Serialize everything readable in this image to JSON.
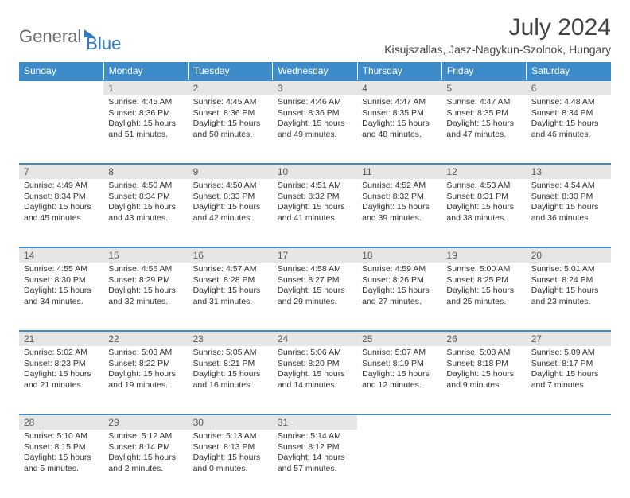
{
  "header": {
    "logo_general": "General",
    "logo_blue": "Blue",
    "title": "July 2024",
    "subtitle": "Kisujszallas, Jasz-Nagykun-Szolnok, Hungary"
  },
  "colors": {
    "header_bg": "#3d8bc9",
    "header_text": "#ffffff",
    "daynum_bg": "#e6e6e6",
    "daynum_text": "#5a5a5a",
    "body_text": "#333333",
    "border": "#3d8bc9",
    "logo_gray": "#6a6a6a",
    "logo_blue": "#2f7bbf"
  },
  "day_headers": [
    "Sunday",
    "Monday",
    "Tuesday",
    "Wednesday",
    "Thursday",
    "Friday",
    "Saturday"
  ],
  "weeks": [
    [
      {
        "n": "",
        "sr": "",
        "ss": "",
        "dl": ""
      },
      {
        "n": "1",
        "sr": "4:45 AM",
        "ss": "8:36 PM",
        "dl": "15 hours and 51 minutes."
      },
      {
        "n": "2",
        "sr": "4:45 AM",
        "ss": "8:36 PM",
        "dl": "15 hours and 50 minutes."
      },
      {
        "n": "3",
        "sr": "4:46 AM",
        "ss": "8:36 PM",
        "dl": "15 hours and 49 minutes."
      },
      {
        "n": "4",
        "sr": "4:47 AM",
        "ss": "8:35 PM",
        "dl": "15 hours and 48 minutes."
      },
      {
        "n": "5",
        "sr": "4:47 AM",
        "ss": "8:35 PM",
        "dl": "15 hours and 47 minutes."
      },
      {
        "n": "6",
        "sr": "4:48 AM",
        "ss": "8:34 PM",
        "dl": "15 hours and 46 minutes."
      }
    ],
    [
      {
        "n": "7",
        "sr": "4:49 AM",
        "ss": "8:34 PM",
        "dl": "15 hours and 45 minutes."
      },
      {
        "n": "8",
        "sr": "4:50 AM",
        "ss": "8:34 PM",
        "dl": "15 hours and 43 minutes."
      },
      {
        "n": "9",
        "sr": "4:50 AM",
        "ss": "8:33 PM",
        "dl": "15 hours and 42 minutes."
      },
      {
        "n": "10",
        "sr": "4:51 AM",
        "ss": "8:32 PM",
        "dl": "15 hours and 41 minutes."
      },
      {
        "n": "11",
        "sr": "4:52 AM",
        "ss": "8:32 PM",
        "dl": "15 hours and 39 minutes."
      },
      {
        "n": "12",
        "sr": "4:53 AM",
        "ss": "8:31 PM",
        "dl": "15 hours and 38 minutes."
      },
      {
        "n": "13",
        "sr": "4:54 AM",
        "ss": "8:30 PM",
        "dl": "15 hours and 36 minutes."
      }
    ],
    [
      {
        "n": "14",
        "sr": "4:55 AM",
        "ss": "8:30 PM",
        "dl": "15 hours and 34 minutes."
      },
      {
        "n": "15",
        "sr": "4:56 AM",
        "ss": "8:29 PM",
        "dl": "15 hours and 32 minutes."
      },
      {
        "n": "16",
        "sr": "4:57 AM",
        "ss": "8:28 PM",
        "dl": "15 hours and 31 minutes."
      },
      {
        "n": "17",
        "sr": "4:58 AM",
        "ss": "8:27 PM",
        "dl": "15 hours and 29 minutes."
      },
      {
        "n": "18",
        "sr": "4:59 AM",
        "ss": "8:26 PM",
        "dl": "15 hours and 27 minutes."
      },
      {
        "n": "19",
        "sr": "5:00 AM",
        "ss": "8:25 PM",
        "dl": "15 hours and 25 minutes."
      },
      {
        "n": "20",
        "sr": "5:01 AM",
        "ss": "8:24 PM",
        "dl": "15 hours and 23 minutes."
      }
    ],
    [
      {
        "n": "21",
        "sr": "5:02 AM",
        "ss": "8:23 PM",
        "dl": "15 hours and 21 minutes."
      },
      {
        "n": "22",
        "sr": "5:03 AM",
        "ss": "8:22 PM",
        "dl": "15 hours and 19 minutes."
      },
      {
        "n": "23",
        "sr": "5:05 AM",
        "ss": "8:21 PM",
        "dl": "15 hours and 16 minutes."
      },
      {
        "n": "24",
        "sr": "5:06 AM",
        "ss": "8:20 PM",
        "dl": "15 hours and 14 minutes."
      },
      {
        "n": "25",
        "sr": "5:07 AM",
        "ss": "8:19 PM",
        "dl": "15 hours and 12 minutes."
      },
      {
        "n": "26",
        "sr": "5:08 AM",
        "ss": "8:18 PM",
        "dl": "15 hours and 9 minutes."
      },
      {
        "n": "27",
        "sr": "5:09 AM",
        "ss": "8:17 PM",
        "dl": "15 hours and 7 minutes."
      }
    ],
    [
      {
        "n": "28",
        "sr": "5:10 AM",
        "ss": "8:15 PM",
        "dl": "15 hours and 5 minutes."
      },
      {
        "n": "29",
        "sr": "5:12 AM",
        "ss": "8:14 PM",
        "dl": "15 hours and 2 minutes."
      },
      {
        "n": "30",
        "sr": "5:13 AM",
        "ss": "8:13 PM",
        "dl": "15 hours and 0 minutes."
      },
      {
        "n": "31",
        "sr": "5:14 AM",
        "ss": "8:12 PM",
        "dl": "14 hours and 57 minutes."
      },
      {
        "n": "",
        "sr": "",
        "ss": "",
        "dl": ""
      },
      {
        "n": "",
        "sr": "",
        "ss": "",
        "dl": ""
      },
      {
        "n": "",
        "sr": "",
        "ss": "",
        "dl": ""
      }
    ]
  ],
  "labels": {
    "sunrise": "Sunrise:",
    "sunset": "Sunset:",
    "daylight": "Daylight:"
  }
}
